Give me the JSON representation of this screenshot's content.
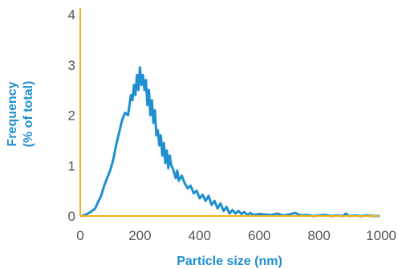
{
  "chart_data": {
    "type": "line",
    "xlabel": "Particle size (nm)",
    "ylabel_lines": [
      "Frequency",
      "(% of total)"
    ],
    "xlim": [
      0,
      1000
    ],
    "ylim": [
      0,
      4
    ],
    "x_ticks": [
      0,
      200,
      400,
      600,
      800,
      1000
    ],
    "y_ticks": [
      0,
      1,
      2,
      3,
      4
    ],
    "x_tick_labels": [
      "0",
      "200",
      "400",
      "600",
      "800",
      "1000"
    ],
    "y_tick_labels": [
      "0",
      "1",
      "2",
      "3",
      "4"
    ],
    "grid": false,
    "axis_color": "#f2b21b",
    "series": [
      {
        "color": "#1f8fd0",
        "x": [
          5,
          20,
          35,
          50,
          60,
          70,
          80,
          90,
          100,
          110,
          120,
          130,
          140,
          150,
          160,
          165,
          170,
          175,
          180,
          185,
          190,
          195,
          200,
          205,
          210,
          215,
          220,
          225,
          230,
          235,
          240,
          245,
          250,
          255,
          260,
          265,
          270,
          275,
          280,
          285,
          290,
          295,
          300,
          305,
          310,
          315,
          320,
          325,
          330,
          340,
          350,
          360,
          370,
          380,
          390,
          400,
          410,
          420,
          430,
          440,
          450,
          460,
          470,
          480,
          490,
          500,
          510,
          520,
          530,
          540,
          550,
          560,
          570,
          580,
          600,
          620,
          640,
          660,
          680,
          700,
          720,
          740,
          760,
          780,
          800,
          820,
          840,
          860,
          880,
          890,
          900,
          920,
          940,
          960,
          980,
          1000
        ],
        "y": [
          0.0,
          0.03,
          0.08,
          0.15,
          0.28,
          0.4,
          0.6,
          0.75,
          0.9,
          1.1,
          1.4,
          1.65,
          1.9,
          2.05,
          2.0,
          2.2,
          2.4,
          2.3,
          2.6,
          2.4,
          2.8,
          2.5,
          2.95,
          2.6,
          2.8,
          2.5,
          2.7,
          2.2,
          2.5,
          2.0,
          2.3,
          1.85,
          2.1,
          1.6,
          1.7,
          1.4,
          1.6,
          1.2,
          1.45,
          1.05,
          1.3,
          0.95,
          1.2,
          1.0,
          0.95,
          0.85,
          0.75,
          0.9,
          0.7,
          0.8,
          0.65,
          0.55,
          0.6,
          0.45,
          0.5,
          0.35,
          0.42,
          0.3,
          0.4,
          0.22,
          0.3,
          0.15,
          0.25,
          0.1,
          0.18,
          0.05,
          0.12,
          0.05,
          0.1,
          0.04,
          0.08,
          0.02,
          0.06,
          0.02,
          0.04,
          0.03,
          0.02,
          0.05,
          0.01,
          0.03,
          0.06,
          0.01,
          0.02,
          0.0,
          0.01,
          0.02,
          0.0,
          0.01,
          0.0,
          0.05,
          0.0,
          0.01,
          0.0,
          0.01,
          0.0,
          0.0
        ]
      }
    ]
  }
}
